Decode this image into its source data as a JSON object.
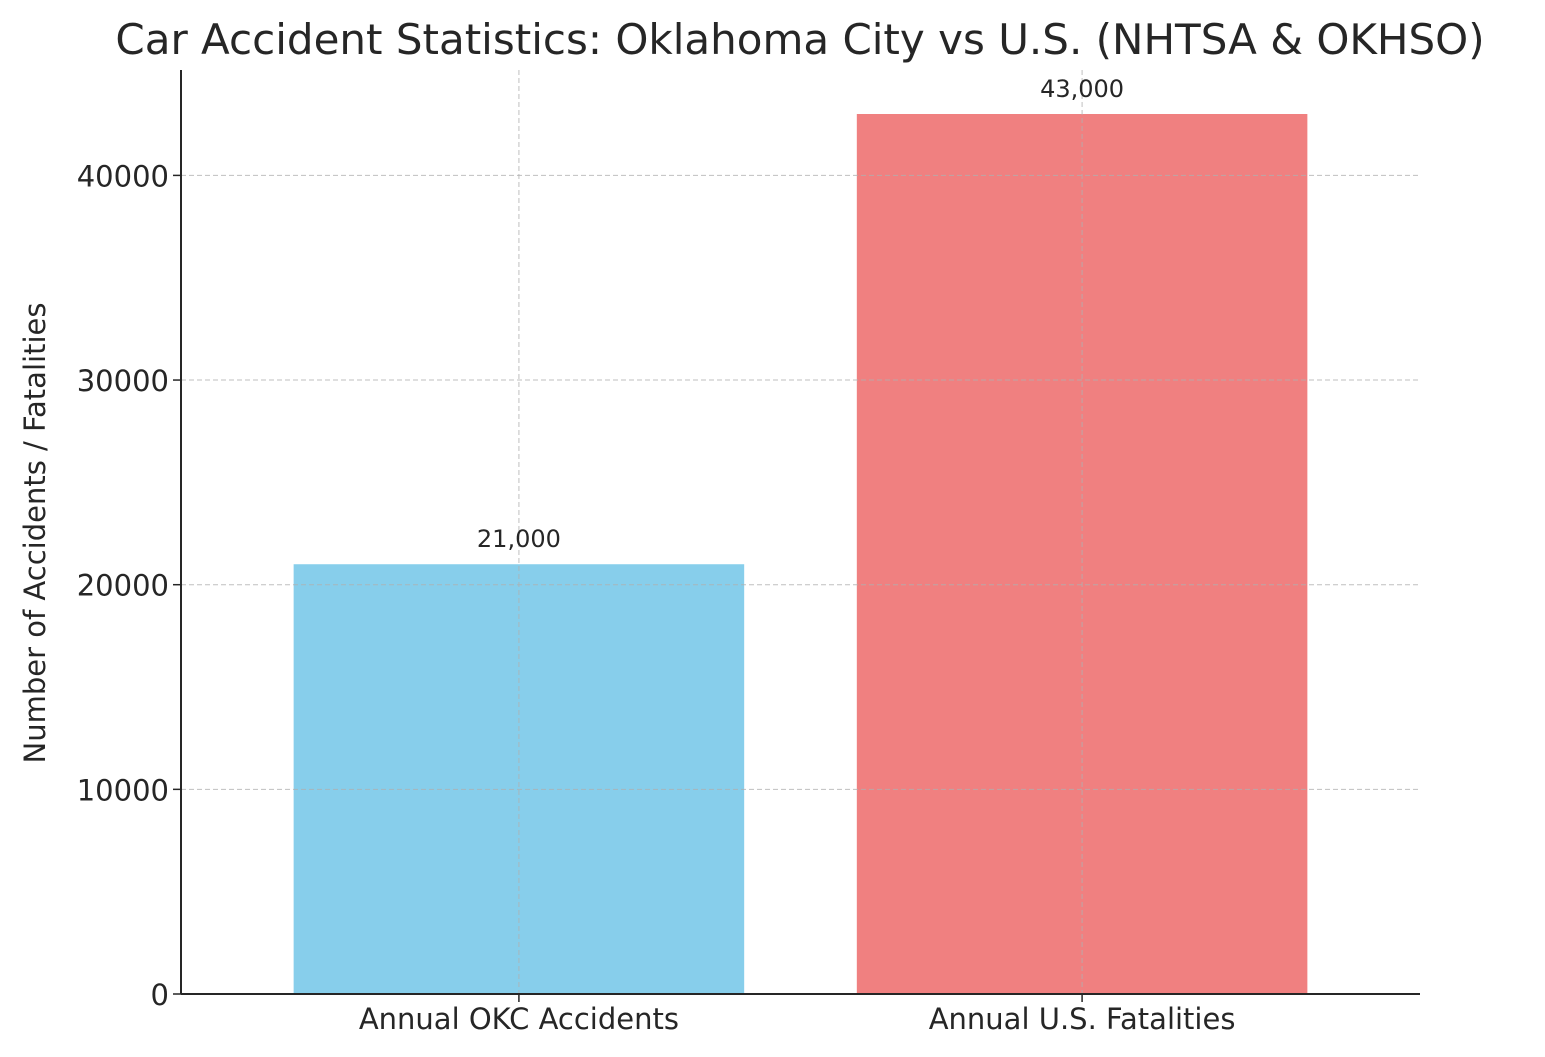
{
  "chart_data": {
    "type": "bar",
    "title": "Car Accident Statistics: Oklahoma City vs U.S. (NHTSA & OKHSO)",
    "xlabel": "",
    "ylabel": "Number of Accidents / Fatalities",
    "categories": [
      "Annual OKC Accidents",
      "Annual U.S. Fatalities"
    ],
    "values": [
      21000,
      43000
    ],
    "data_labels": [
      "21,000",
      "43,000"
    ],
    "colors": [
      "#87CEEB",
      "#F08080"
    ],
    "yticks": [
      0,
      10000,
      20000,
      30000,
      40000
    ],
    "ytick_labels": [
      "0",
      "10000",
      "20000",
      "30000",
      "40000"
    ],
    "ylim": [
      0,
      45150
    ],
    "grid": true
  }
}
